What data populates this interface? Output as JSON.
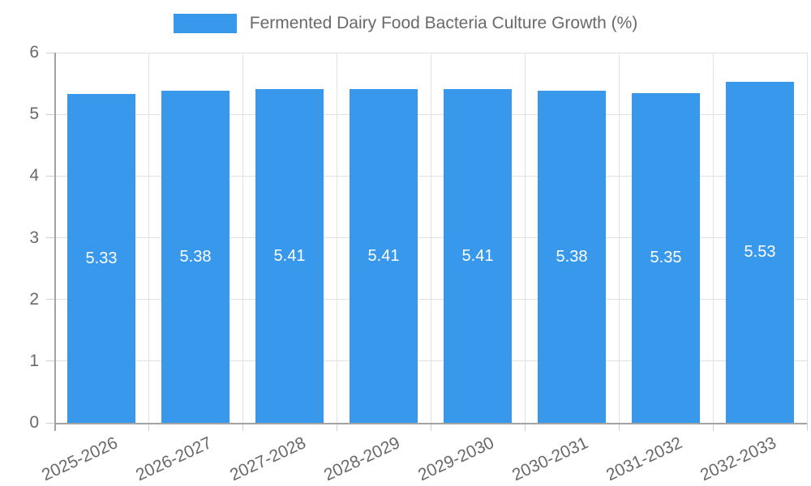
{
  "legend": {
    "series_label": "Fermented Dairy Food Bacteria Culture Growth (%)"
  },
  "chart_data": {
    "type": "bar",
    "title": "Fermented Dairy Food Bacteria Culture Growth (%)",
    "categories": [
      "2025-2026",
      "2026-2027",
      "2027-2028",
      "2028-2029",
      "2029-2030",
      "2030-2031",
      "2031-2032",
      "2032-2033"
    ],
    "values": [
      5.33,
      5.38,
      5.41,
      5.41,
      5.41,
      5.38,
      5.35,
      5.53
    ],
    "bar_labels": [
      "5.33",
      "5.38",
      "5.41",
      "5.41",
      "5.41",
      "5.38",
      "5.35",
      "5.53"
    ],
    "xlabel": "",
    "ylabel": "",
    "ylim": [
      0,
      6
    ],
    "yticks": [
      0,
      1,
      2,
      3,
      4,
      5,
      6
    ],
    "grid": true,
    "legend_position": "top",
    "colors": {
      "bar": "#3898EC",
      "bar_label_text": "#FFFFFF",
      "grid": "#E2E2E2",
      "tick": "#CFCFCF",
      "axis": "#A3A3A3",
      "text": "#696969"
    }
  }
}
